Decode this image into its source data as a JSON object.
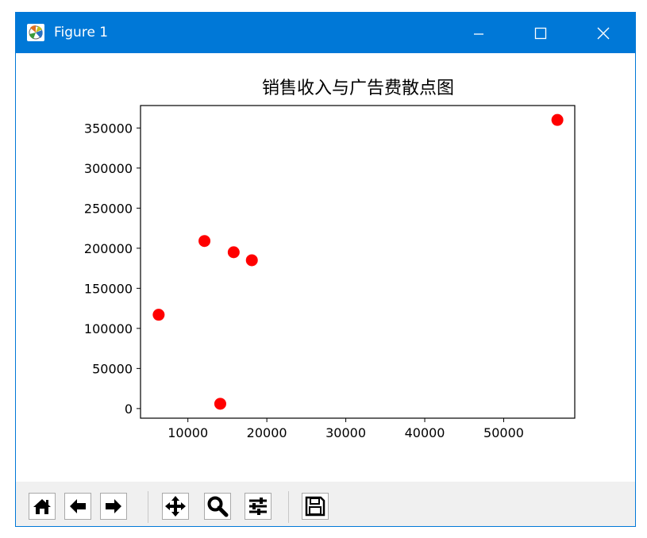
{
  "window": {
    "title": "Figure 1",
    "icon_name": "matplotlib-figure-icon",
    "titlebar_color": "#0078d7",
    "controls": [
      "minimize-icon",
      "maximize-icon",
      "close-icon"
    ]
  },
  "toolbar": {
    "buttons": [
      {
        "name": "home-button",
        "icon": "home-icon"
      },
      {
        "name": "back-button",
        "icon": "arrow-left-icon"
      },
      {
        "name": "forward-button",
        "icon": "arrow-right-icon"
      },
      {
        "name": "pan-button",
        "icon": "move-icon"
      },
      {
        "name": "zoom-button",
        "icon": "magnifier-icon"
      },
      {
        "name": "configure-subplots-button",
        "icon": "sliders-icon"
      },
      {
        "name": "save-button",
        "icon": "floppy-disk-icon"
      }
    ]
  },
  "chart_data": {
    "type": "scatter",
    "title": "销售收入与广告费散点图",
    "xlabel": "",
    "ylabel": "",
    "xlim": [
      4000,
      59000
    ],
    "ylim": [
      -12000,
      378000
    ],
    "x_ticks": [
      10000,
      20000,
      30000,
      40000,
      50000
    ],
    "x_tick_labels": [
      "10000",
      "20000",
      "30000",
      "40000",
      "50000"
    ],
    "y_ticks": [
      0,
      50000,
      100000,
      150000,
      200000,
      250000,
      300000,
      350000
    ],
    "y_tick_labels": [
      "0",
      "50000",
      "100000",
      "150000",
      "200000",
      "250000",
      "300000",
      "350000"
    ],
    "grid": false,
    "legend": "none",
    "marker_color": "#ff0000",
    "series": [
      {
        "points": [
          {
            "x": 6300,
            "y": 117000
          },
          {
            "x": 12100,
            "y": 209000
          },
          {
            "x": 14100,
            "y": 6000
          },
          {
            "x": 15800,
            "y": 195000
          },
          {
            "x": 18100,
            "y": 185000
          },
          {
            "x": 56800,
            "y": 360000
          }
        ]
      }
    ]
  }
}
